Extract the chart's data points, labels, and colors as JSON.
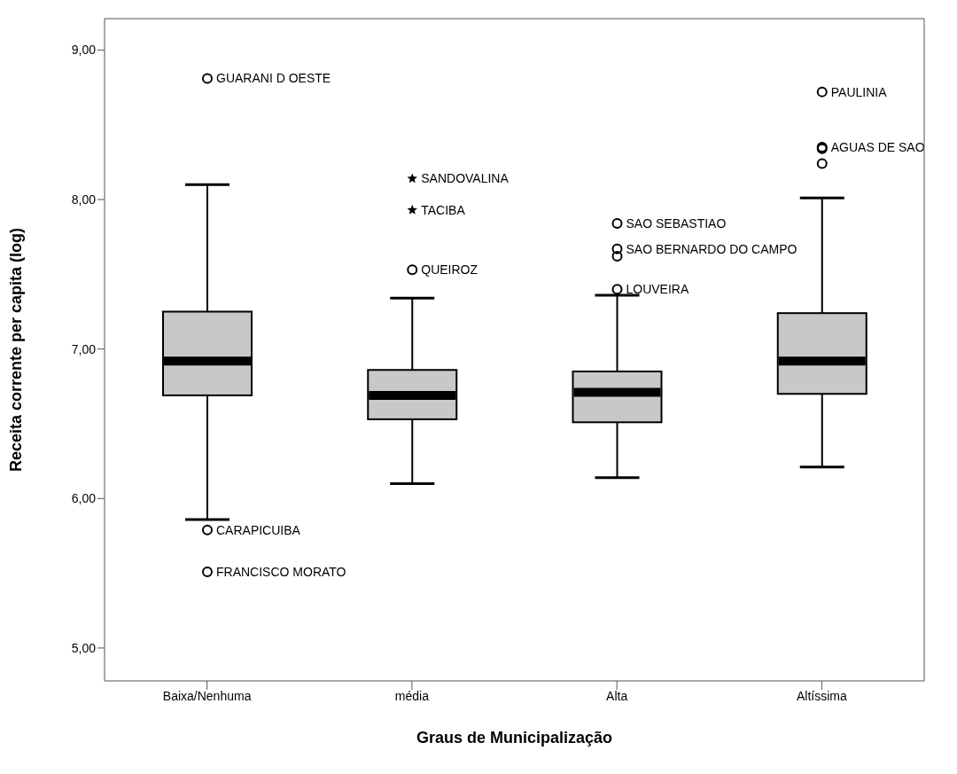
{
  "chart_data": {
    "type": "box",
    "xlabel": "Graus de Municipalização",
    "ylabel": "Receita corrente per capita (log)",
    "categories": [
      "Baixa/Nenhuma",
      "média",
      "Alta",
      "Altíssima"
    ],
    "color": "#c8c8c8",
    "boxes": [
      {
        "low": 5.86,
        "q1": 6.69,
        "median": 6.92,
        "q3": 7.25,
        "high": 8.1
      },
      {
        "low": 6.1,
        "q1": 6.53,
        "median": 6.69,
        "q3": 6.86,
        "high": 7.34
      },
      {
        "low": 6.14,
        "q1": 6.51,
        "median": 6.71,
        "q3": 6.85,
        "high": 7.36
      },
      {
        "low": 6.21,
        "q1": 6.7,
        "median": 6.92,
        "q3": 7.24,
        "high": 8.01
      }
    ],
    "series": [
      {
        "type": "scatter",
        "marker": "circle",
        "color": "#000000",
        "x": [
          "Baixa/Nenhuma",
          "Baixa/Nenhuma",
          "Baixa/Nenhuma",
          "média",
          "Alta",
          "Alta",
          "Alta",
          "Alta",
          "Altíssima",
          "Altíssima",
          "Altíssima",
          "Altíssima"
        ],
        "values": [
          8.81,
          5.79,
          5.51,
          7.53,
          7.84,
          7.67,
          7.62,
          7.4,
          8.72,
          8.35,
          8.34,
          8.24
        ]
      },
      {
        "type": "scatter",
        "marker": "star",
        "color": "#000000",
        "x": [
          "média",
          "média"
        ],
        "values": [
          8.14,
          7.93
        ]
      }
    ],
    "ylim": [
      4.78,
      9.21
    ],
    "yticks": [
      {
        "value": 5,
        "label": "5,00"
      },
      {
        "value": 6,
        "label": "6,00"
      },
      {
        "value": 7,
        "label": "7,00"
      },
      {
        "value": 8,
        "label": "8,00"
      },
      {
        "value": 9,
        "label": "9,00"
      }
    ],
    "grid": false,
    "annotations": [
      {
        "text": "GUARANI D OESTE",
        "x": "Baixa/Nenhuma",
        "y": 8.81
      },
      {
        "text": "CARAPICUIBA",
        "x": "Baixa/Nenhuma",
        "y": 5.79
      },
      {
        "text": "FRANCISCO MORATO",
        "x": "Baixa/Nenhuma",
        "y": 5.51
      },
      {
        "text": "SANDOVALINA",
        "x": "média",
        "y": 8.14
      },
      {
        "text": "TACIBA",
        "x": "média",
        "y": 7.93
      },
      {
        "text": "QUEIROZ",
        "x": "média",
        "y": 7.53
      },
      {
        "text": "SAO SEBASTIAO",
        "x": "Alta",
        "y": 7.84
      },
      {
        "text": "SAO BERNARDO DO CAMPO",
        "x": "Alta",
        "y": 7.67
      },
      {
        "text": "LOUVEIRA",
        "x": "Alta",
        "y": 7.4
      },
      {
        "text": "PAULINIA",
        "x": "Altíssima",
        "y": 8.72
      },
      {
        "text": "AGUAS DE SAO",
        "x": "Altíssima",
        "y": 8.35
      }
    ]
  }
}
